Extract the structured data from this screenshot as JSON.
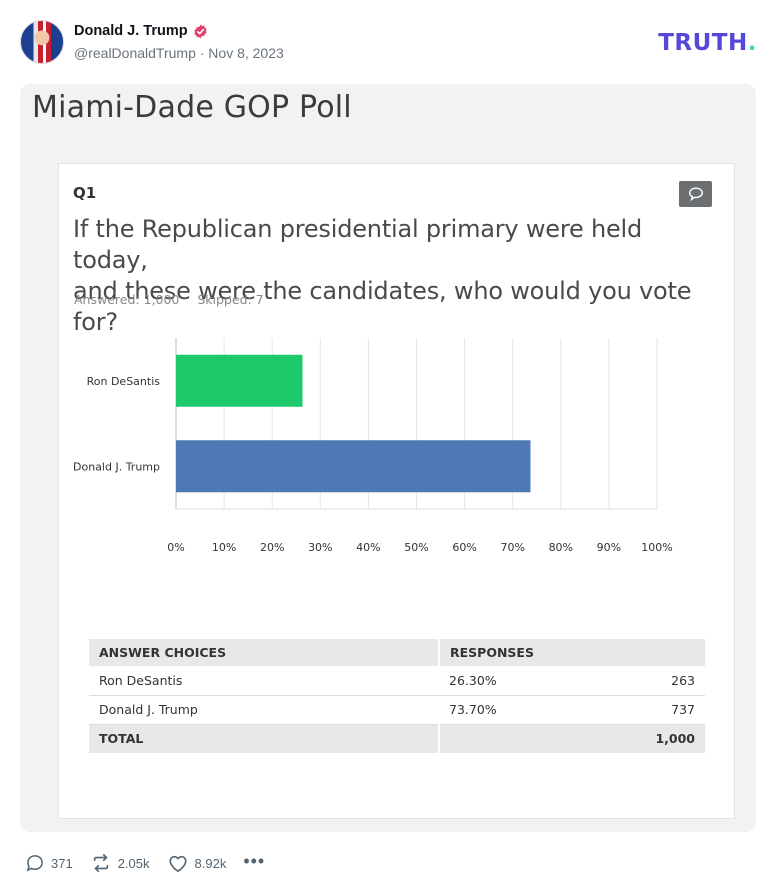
{
  "post": {
    "author_name": "Donald J. Trump",
    "handle_date": "@realDonaldTrump · Nov 8, 2023",
    "brand": "TRUTH",
    "brand_dot": "."
  },
  "media": {
    "title": "Miami-Dade GOP Poll",
    "question_number": "Q1",
    "question_line1": "If the Republican presidential primary were held today,",
    "question_line2": "and these were the candidates, who would you vote for?",
    "answered": "Answered: 1,000",
    "skipped": "Skipped: 7"
  },
  "chart_data": {
    "type": "bar",
    "orientation": "horizontal",
    "categories": [
      "Ron DeSantis",
      "Donald J. Trump"
    ],
    "values": [
      26.3,
      73.7
    ],
    "colors": [
      "#1ec96c",
      "#4e79b4"
    ],
    "xlim": [
      0,
      100
    ],
    "ticks": [
      "0%",
      "10%",
      "20%",
      "30%",
      "40%",
      "50%",
      "60%",
      "70%",
      "80%",
      "90%",
      "100%"
    ],
    "grid": true
  },
  "table": {
    "headers": [
      "ANSWER CHOICES",
      "RESPONSES"
    ],
    "rows": [
      {
        "choice": "Ron DeSantis",
        "percent": "26.30%",
        "count": "263"
      },
      {
        "choice": "Donald J. Trump",
        "percent": "73.70%",
        "count": "737"
      }
    ],
    "total_label": "TOTAL",
    "total_value": "1,000"
  },
  "actions": {
    "replies": "371",
    "retruths": "2.05k",
    "likes": "8.92k"
  }
}
